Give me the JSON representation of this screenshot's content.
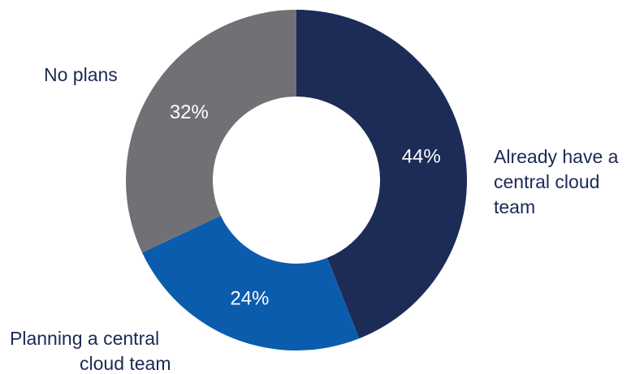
{
  "chart_data": {
    "type": "pie",
    "donut": true,
    "slices": [
      {
        "label": "Already have a central cloud team",
        "value": 44,
        "value_label": "44%",
        "color": "#1d2b57"
      },
      {
        "label": "Planning a central cloud team",
        "value": 24,
        "value_label": "24%",
        "color": "#0b5cad"
      },
      {
        "label": "No plans",
        "value": 32,
        "value_label": "32%",
        "color": "#717175"
      }
    ]
  }
}
